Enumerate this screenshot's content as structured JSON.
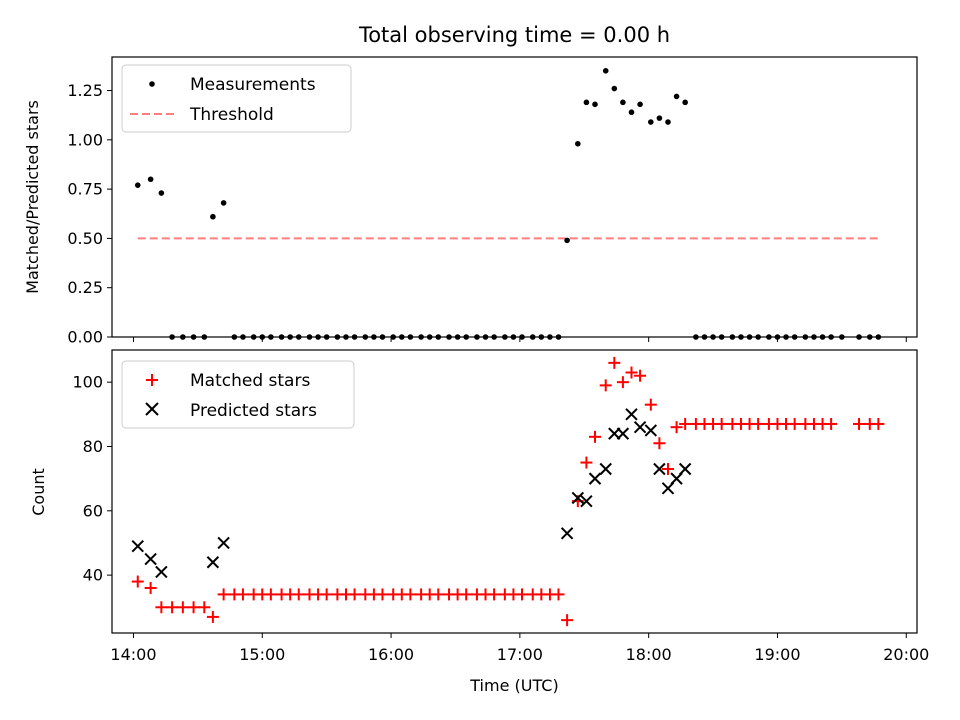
{
  "chart_data": [
    {
      "type": "scatter",
      "title": "Total observing time = 0.00 h",
      "ylabel": "Matched/Predicted stars",
      "xlabel": "",
      "xlim": [
        "13:50",
        "20:05"
      ],
      "ylim": [
        0,
        1.42
      ],
      "yticks": [
        0.0,
        0.25,
        0.5,
        0.75,
        1.0,
        1.25
      ],
      "ytick_labels": [
        "0.00",
        "0.25",
        "0.50",
        "0.75",
        "1.00",
        "1.25"
      ],
      "legend_position": "upper left",
      "series": [
        {
          "name": "Measurements",
          "marker": "dot",
          "color": "#000000",
          "points": [
            [
              "14:02",
              0.77
            ],
            [
              "14:08",
              0.8
            ],
            [
              "14:13",
              0.73
            ],
            [
              "14:18",
              0.0
            ],
            [
              "14:23",
              0.0
            ],
            [
              "14:28",
              0.0
            ],
            [
              "14:33",
              0.0
            ],
            [
              "14:37",
              0.61
            ],
            [
              "14:42",
              0.68
            ],
            [
              "14:47",
              0.0
            ],
            [
              "14:51",
              0.0
            ],
            [
              "14:56",
              0.0
            ],
            [
              "15:00",
              0.0
            ],
            [
              "15:04",
              0.0
            ],
            [
              "15:09",
              0.0
            ],
            [
              "15:13",
              0.0
            ],
            [
              "15:17",
              0.0
            ],
            [
              "15:22",
              0.0
            ],
            [
              "15:26",
              0.0
            ],
            [
              "15:30",
              0.0
            ],
            [
              "15:35",
              0.0
            ],
            [
              "15:39",
              0.0
            ],
            [
              "15:43",
              0.0
            ],
            [
              "15:48",
              0.0
            ],
            [
              "15:52",
              0.0
            ],
            [
              "15:56",
              0.0
            ],
            [
              "16:01",
              0.0
            ],
            [
              "16:05",
              0.0
            ],
            [
              "16:09",
              0.0
            ],
            [
              "16:14",
              0.0
            ],
            [
              "16:18",
              0.0
            ],
            [
              "16:22",
              0.0
            ],
            [
              "16:27",
              0.0
            ],
            [
              "16:31",
              0.0
            ],
            [
              "16:35",
              0.0
            ],
            [
              "16:40",
              0.0
            ],
            [
              "16:44",
              0.0
            ],
            [
              "16:48",
              0.0
            ],
            [
              "16:53",
              0.0
            ],
            [
              "16:57",
              0.0
            ],
            [
              "17:01",
              0.0
            ],
            [
              "17:06",
              0.0
            ],
            [
              "17:10",
              0.0
            ],
            [
              "17:14",
              0.0
            ],
            [
              "17:18",
              0.0
            ],
            [
              "17:22",
              0.49
            ],
            [
              "17:27",
              0.98
            ],
            [
              "17:31",
              1.19
            ],
            [
              "17:35",
              1.18
            ],
            [
              "17:40",
              1.35
            ],
            [
              "17:44",
              1.26
            ],
            [
              "17:48",
              1.19
            ],
            [
              "17:52",
              1.14
            ],
            [
              "17:56",
              1.18
            ],
            [
              "18:01",
              1.09
            ],
            [
              "18:05",
              1.11
            ],
            [
              "18:09",
              1.09
            ],
            [
              "18:13",
              1.22
            ],
            [
              "18:17",
              1.19
            ],
            [
              "18:22",
              0.0
            ],
            [
              "18:26",
              0.0
            ],
            [
              "18:30",
              0.0
            ],
            [
              "18:34",
              0.0
            ],
            [
              "18:39",
              0.0
            ],
            [
              "18:43",
              0.0
            ],
            [
              "18:47",
              0.0
            ],
            [
              "18:51",
              0.0
            ],
            [
              "18:56",
              0.0
            ],
            [
              "19:00",
              0.0
            ],
            [
              "19:04",
              0.0
            ],
            [
              "19:08",
              0.0
            ],
            [
              "19:13",
              0.0
            ],
            [
              "19:17",
              0.0
            ],
            [
              "19:21",
              0.0
            ],
            [
              "19:25",
              0.0
            ],
            [
              "19:30",
              0.0
            ],
            [
              "19:38",
              0.0
            ],
            [
              "19:43",
              0.0
            ],
            [
              "19:47",
              0.0
            ]
          ]
        },
        {
          "name": "Threshold",
          "type": "line",
          "style": "dashed",
          "color": "#ff7f7f",
          "points": [
            [
              "14:02",
              0.5
            ],
            [
              "19:47",
              0.5
            ]
          ]
        }
      ]
    },
    {
      "type": "scatter",
      "title": "",
      "ylabel": "Count",
      "xlabel": "Time (UTC)",
      "xlim": [
        "13:50",
        "20:05"
      ],
      "ylim": [
        22,
        110
      ],
      "yticks": [
        40,
        60,
        80,
        100
      ],
      "ytick_labels": [
        "40",
        "60",
        "80",
        "100"
      ],
      "xticks": [
        "14:00",
        "15:00",
        "16:00",
        "17:00",
        "18:00",
        "19:00",
        "20:00"
      ],
      "legend_position": "upper left",
      "series": [
        {
          "name": "Matched stars",
          "marker": "plus",
          "color": "#ff0000",
          "points": [
            [
              "14:02",
              38
            ],
            [
              "14:08",
              36
            ],
            [
              "14:13",
              30
            ],
            [
              "14:18",
              30
            ],
            [
              "14:23",
              30
            ],
            [
              "14:28",
              30
            ],
            [
              "14:33",
              30
            ],
            [
              "14:37",
              27
            ],
            [
              "14:42",
              34
            ],
            [
              "14:47",
              34
            ],
            [
              "14:51",
              34
            ],
            [
              "14:56",
              34
            ],
            [
              "15:00",
              34
            ],
            [
              "15:04",
              34
            ],
            [
              "15:09",
              34
            ],
            [
              "15:13",
              34
            ],
            [
              "15:17",
              34
            ],
            [
              "15:22",
              34
            ],
            [
              "15:26",
              34
            ],
            [
              "15:30",
              34
            ],
            [
              "15:35",
              34
            ],
            [
              "15:39",
              34
            ],
            [
              "15:43",
              34
            ],
            [
              "15:48",
              34
            ],
            [
              "15:52",
              34
            ],
            [
              "15:56",
              34
            ],
            [
              "16:01",
              34
            ],
            [
              "16:05",
              34
            ],
            [
              "16:09",
              34
            ],
            [
              "16:14",
              34
            ],
            [
              "16:18",
              34
            ],
            [
              "16:22",
              34
            ],
            [
              "16:27",
              34
            ],
            [
              "16:31",
              34
            ],
            [
              "16:35",
              34
            ],
            [
              "16:40",
              34
            ],
            [
              "16:44",
              34
            ],
            [
              "16:48",
              34
            ],
            [
              "16:53",
              34
            ],
            [
              "16:57",
              34
            ],
            [
              "17:01",
              34
            ],
            [
              "17:06",
              34
            ],
            [
              "17:10",
              34
            ],
            [
              "17:14",
              34
            ],
            [
              "17:18",
              34
            ],
            [
              "17:22",
              26
            ],
            [
              "17:27",
              63
            ],
            [
              "17:31",
              75
            ],
            [
              "17:35",
              83
            ],
            [
              "17:40",
              99
            ],
            [
              "17:44",
              106
            ],
            [
              "17:48",
              100
            ],
            [
              "17:52",
              103
            ],
            [
              "17:56",
              102
            ],
            [
              "18:01",
              93
            ],
            [
              "18:05",
              81
            ],
            [
              "18:09",
              73
            ],
            [
              "18:13",
              86
            ],
            [
              "18:17",
              87
            ],
            [
              "18:22",
              87
            ],
            [
              "18:26",
              87
            ],
            [
              "18:30",
              87
            ],
            [
              "18:34",
              87
            ],
            [
              "18:39",
              87
            ],
            [
              "18:43",
              87
            ],
            [
              "18:47",
              87
            ],
            [
              "18:51",
              87
            ],
            [
              "18:56",
              87
            ],
            [
              "19:00",
              87
            ],
            [
              "19:04",
              87
            ],
            [
              "19:08",
              87
            ],
            [
              "19:13",
              87
            ],
            [
              "19:17",
              87
            ],
            [
              "19:21",
              87
            ],
            [
              "19:25",
              87
            ],
            [
              "19:38",
              87
            ],
            [
              "19:43",
              87
            ],
            [
              "19:47",
              87
            ]
          ]
        },
        {
          "name": "Predicted stars",
          "marker": "x",
          "color": "#000000",
          "points": [
            [
              "14:02",
              49
            ],
            [
              "14:08",
              45
            ],
            [
              "14:13",
              41
            ],
            [
              "14:37",
              44
            ],
            [
              "14:42",
              50
            ],
            [
              "17:22",
              53
            ],
            [
              "17:27",
              64
            ],
            [
              "17:31",
              63
            ],
            [
              "17:35",
              70
            ],
            [
              "17:40",
              73
            ],
            [
              "17:44",
              84
            ],
            [
              "17:48",
              84
            ],
            [
              "17:52",
              90
            ],
            [
              "17:56",
              86
            ],
            [
              "18:01",
              85
            ],
            [
              "18:05",
              73
            ],
            [
              "18:09",
              67
            ],
            [
              "18:13",
              70
            ],
            [
              "18:17",
              73
            ]
          ]
        }
      ]
    }
  ]
}
